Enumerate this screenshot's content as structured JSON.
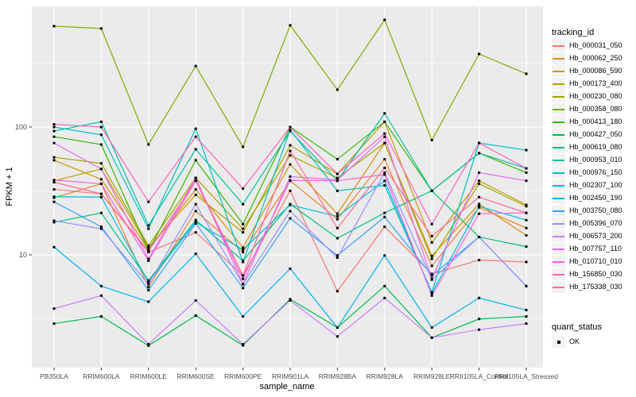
{
  "figure": {
    "background": "#FFFFFF",
    "panel_background": "#EBEBEB",
    "grid_color": "#FFFFFF",
    "axis_text_color": "#4D4D4D",
    "tick_mark_color": "#333333",
    "point_color": "#000000"
  },
  "axes": {
    "y_title": "FPKM + 1",
    "x_title": "sample_name",
    "y_tick_labels": [
      "100",
      "10"
    ],
    "y_tick_values": [
      100,
      10
    ]
  },
  "legend": {
    "tracking_title": "tracking_id",
    "quant_title": "quant_status",
    "quant_items": [
      {
        "label": "OK",
        "marker": "black-square"
      }
    ]
  },
  "chart_data": {
    "type": "line",
    "title": "",
    "xlabel": "sample_name",
    "ylabel": "FPKM + 1",
    "y_scale": "log10",
    "ylim": [
      1.3,
      880
    ],
    "y_major_gridlines": [
      10,
      100
    ],
    "y_minor_gridlines": [
      3.162,
      31.62,
      316.2
    ],
    "grid": true,
    "legend_position": "right",
    "point_marker": "black square (quant_status = OK)",
    "categories": [
      "PB350LA",
      "RRIM600LA",
      "RRIM600LE",
      "RRIM600SE",
      "RRIM600PE",
      "RRIM901LA",
      "RRIM928BA",
      "RRIM928LA",
      "RRIM928LE",
      "RRII105LA_Control",
      "RRII105LA_Stressed"
    ],
    "series": [
      {
        "name": "Hb_000031_050",
        "color": "#F8766D",
        "values": [
          32.5,
          30,
          10.5,
          15,
          6.9,
          31.7,
          5.2,
          16.6,
          7.1,
          9.1,
          8.8
        ]
      },
      {
        "name": "Hb_000062_250",
        "color": "#EA8331",
        "values": [
          28,
          36,
          5.6,
          22,
          10.5,
          38,
          19,
          56,
          8.2,
          23.5,
          16.2
        ]
      },
      {
        "name": "Hb_000086_590",
        "color": "#D89000",
        "values": [
          55,
          39,
          11,
          32.5,
          11.4,
          51,
          21,
          75,
          9.8,
          25,
          14.2
        ]
      },
      {
        "name": "Hb_000173_400",
        "color": "#C09B00",
        "values": [
          38,
          47,
          11.5,
          29.5,
          15,
          72,
          43,
          110,
          12.5,
          38,
          24.6
        ]
      },
      {
        "name": "Hb_000230_080",
        "color": "#A3A500",
        "values": [
          58,
          52,
          11.8,
          40,
          16,
          60,
          40,
          75,
          9.3,
          36,
          24
        ]
      },
      {
        "name": "Hb_000358_080",
        "color": "#7CAE00",
        "values": [
          615,
          590,
          73,
          300,
          70,
          625,
          196,
          690,
          79,
          373,
          261
        ]
      },
      {
        "name": "Hb_000413_180",
        "color": "#39B600",
        "values": [
          84,
          73,
          10.7,
          55,
          17.4,
          100,
          56,
          110,
          31.7,
          62.5,
          44
        ]
      },
      {
        "name": "Hb_000427_050",
        "color": "#00BB4E",
        "values": [
          2.9,
          3.3,
          1.95,
          3.35,
          1.96,
          4.5,
          2.7,
          5.7,
          2.25,
          3.15,
          3.3
        ]
      },
      {
        "name": "Hb_000619_080",
        "color": "#00BF7D",
        "values": [
          18,
          21.3,
          6.3,
          18.7,
          9,
          25,
          13.5,
          21.3,
          31.7,
          13.8,
          11.6
        ]
      },
      {
        "name": "Hb_000953_010",
        "color": "#00C1A3",
        "values": [
          93,
          110,
          17,
          67,
          24.9,
          93,
          38,
          128,
          31.7,
          62.5,
          47.5
        ]
      },
      {
        "name": "Hb_000976_150",
        "color": "#00BFC4",
        "values": [
          100,
          87,
          16,
          97,
          8.8,
          95,
          31.7,
          35,
          5.1,
          75,
          66
        ]
      },
      {
        "name": "Hb_002307_100",
        "color": "#00BAE0",
        "values": [
          28.5,
          28.3,
          6.1,
          18,
          11,
          24.6,
          20,
          38,
          5.0,
          24,
          18.7
        ]
      },
      {
        "name": "Hb_002450_190",
        "color": "#00B0F6",
        "values": [
          11.5,
          5.7,
          4.3,
          10.2,
          3.3,
          7.8,
          2.7,
          9.9,
          2.7,
          4.6,
          3.7
        ]
      },
      {
        "name": "Hb_003750_080",
        "color": "#35A2FF",
        "values": [
          26,
          16.6,
          5.3,
          17.6,
          5.5,
          19.3,
          9.9,
          19.8,
          6.9,
          13.8,
          5.7
        ]
      },
      {
        "name": "Hb_005396_070",
        "color": "#9590FF",
        "values": [
          18.5,
          16,
          5.9,
          24.9,
          5.9,
          22,
          9.5,
          44,
          6.4,
          13.8,
          5.7
        ]
      },
      {
        "name": "Hb_006573_200",
        "color": "#C77CFF",
        "values": [
          3.8,
          4.8,
          2.0,
          4.4,
          2.0,
          4.4,
          2.3,
          4.6,
          2.25,
          2.6,
          2.9
        ]
      },
      {
        "name": "Hb_007757_110",
        "color": "#E76BF3",
        "values": [
          75,
          47,
          9.3,
          40,
          5.9,
          41,
          38.5,
          84,
          6.5,
          44,
          38
        ]
      },
      {
        "name": "Hb_010710_010",
        "color": "#FA62DB",
        "values": [
          38.5,
          36,
          9.0,
          38,
          6.5,
          38.3,
          38,
          42.5,
          4.8,
          21,
          21.3
        ]
      },
      {
        "name": "Hb_156850_030",
        "color": "#FF62BC",
        "values": [
          105,
          100,
          26,
          84,
          33,
          100,
          43,
          89,
          17.4,
          75,
          47.5
        ]
      },
      {
        "name": "Hb_175338_030",
        "color": "#FF6A98",
        "values": [
          37,
          30,
          10.7,
          38,
          6.9,
          65,
          16.2,
          48,
          14,
          28.3,
          21.3
        ]
      }
    ]
  }
}
